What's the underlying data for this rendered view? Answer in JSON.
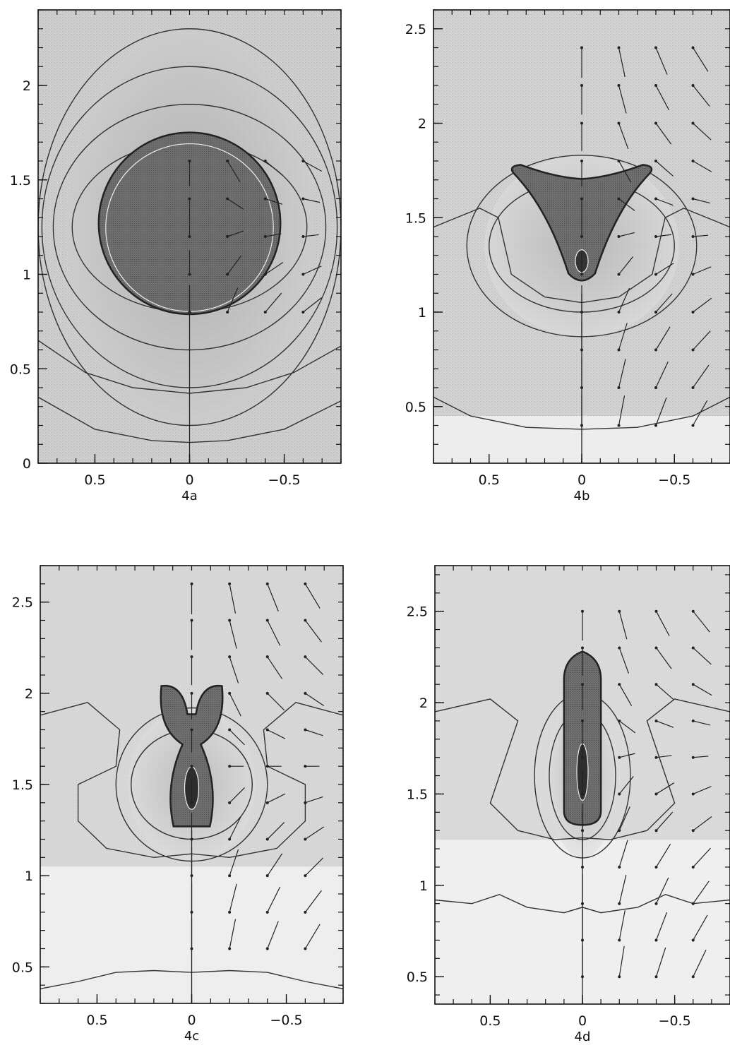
{
  "chart_data": [
    {
      "type": "contour",
      "panel_label": "4a",
      "xlim": [
        0.8,
        -0.8
      ],
      "ylim": [
        0,
        2.4
      ],
      "x_ticks": [
        0.5,
        0,
        -0.5
      ],
      "x_tick_labels": [
        "0.5",
        "0",
        "−0.5"
      ],
      "y_ticks": [
        0,
        0.5,
        1,
        1.5,
        2
      ],
      "y_tick_labels": [
        "0",
        "0.5",
        "1",
        "1.5",
        "2"
      ],
      "body": {
        "shape": "circle",
        "center": [
          0,
          1.27
        ],
        "radius": 0.48
      },
      "contour_lines": [
        {
          "points": [
            [
              0.8,
              0.65
            ],
            [
              0.55,
              0.48
            ],
            [
              0.3,
              0.4
            ],
            [
              0,
              0.37
            ],
            [
              -0.3,
              0.4
            ],
            [
              -0.55,
              0.48
            ],
            [
              -0.8,
              0.62
            ]
          ]
        },
        {
          "points": [
            [
              0.8,
              0.35
            ],
            [
              0.5,
              0.18
            ],
            [
              0.2,
              0.12
            ],
            [
              0,
              0.11
            ],
            [
              -0.2,
              0.12
            ],
            [
              -0.5,
              0.18
            ],
            [
              -0.8,
              0.33
            ]
          ]
        }
      ],
      "rings": [
        {
          "center_y": 1.25,
          "rx": [
            0.62,
            0.72,
            0.78,
            0.8
          ],
          "ry": [
            0.45,
            0.65,
            0.85,
            1.05
          ]
        }
      ],
      "vectors": {
        "grid_x": [
          0,
          -0.2,
          -0.4,
          -0.6
        ],
        "grid_y": [
          0.2,
          0.4,
          0.6,
          0.8,
          1.0,
          1.2,
          1.4,
          1.6
        ],
        "mask_y_min": 0.8
      }
    },
    {
      "type": "contour",
      "panel_label": "4b",
      "xlim": [
        0.8,
        -0.8
      ],
      "ylim": [
        0.2,
        2.6
      ],
      "x_ticks": [
        0.5,
        0,
        -0.5
      ],
      "x_tick_labels": [
        "0.5",
        "0",
        "−0.5"
      ],
      "y_ticks": [
        0.5,
        1,
        1.5,
        2,
        2.5
      ],
      "y_tick_labels": [
        "0.5",
        "1",
        "1.5",
        "2",
        "2.5"
      ],
      "body": {
        "shape": "cup",
        "center": [
          0,
          1.45
        ],
        "width": 0.36
      },
      "contour_lines": [
        {
          "points": [
            [
              0.8,
              0.55
            ],
            [
              0.6,
              0.45
            ],
            [
              0.3,
              0.39
            ],
            [
              0,
              0.38
            ],
            [
              -0.3,
              0.39
            ],
            [
              -0.6,
              0.45
            ],
            [
              -0.8,
              0.55
            ]
          ]
        },
        {
          "points": [
            [
              0.8,
              1.45
            ],
            [
              0.55,
              1.55
            ],
            [
              0.45,
              1.5
            ],
            [
              0.38,
              1.2
            ],
            [
              0.2,
              1.08
            ],
            [
              0,
              1.05
            ],
            [
              -0.2,
              1.08
            ],
            [
              -0.38,
              1.2
            ],
            [
              -0.45,
              1.5
            ],
            [
              -0.55,
              1.55
            ],
            [
              -0.8,
              1.45
            ]
          ]
        }
      ],
      "rings": [
        {
          "center_y": 1.35,
          "rx": [
            0.5,
            0.62
          ],
          "ry": [
            0.35,
            0.48
          ]
        }
      ],
      "vectors": {
        "grid_x": [
          0,
          -0.2,
          -0.4,
          -0.6
        ],
        "grid_y": [
          0.4,
          0.6,
          0.8,
          1.0,
          1.2,
          1.4,
          1.6,
          1.8,
          2.0,
          2.2,
          2.4
        ],
        "mask_y_min": 0.2
      }
    },
    {
      "type": "contour",
      "panel_label": "4c",
      "xlim": [
        0.8,
        -0.8
      ],
      "ylim": [
        0.3,
        2.7
      ],
      "x_ticks": [
        0.5,
        0,
        -0.5
      ],
      "x_tick_labels": [
        "0.5",
        "0",
        "−0.5"
      ],
      "y_ticks": [
        0.5,
        1,
        1.5,
        2,
        2.5
      ],
      "y_tick_labels": [
        "0.5",
        "1",
        "1.5",
        "2",
        "2.5"
      ],
      "body": {
        "shape": "jet",
        "center": [
          0,
          1.6
        ],
        "width": 0.16
      },
      "contour_lines": [
        {
          "points": [
            [
              0.8,
              0.38
            ],
            [
              0.6,
              0.42
            ],
            [
              0.4,
              0.47
            ],
            [
              0.2,
              0.48
            ],
            [
              0,
              0.47
            ],
            [
              -0.2,
              0.48
            ],
            [
              -0.4,
              0.47
            ],
            [
              -0.6,
              0.42
            ],
            [
              -0.8,
              0.38
            ]
          ]
        },
        {
          "points": [
            [
              0.8,
              1.88
            ],
            [
              0.55,
              1.95
            ],
            [
              0.38,
              1.8
            ],
            [
              0.4,
              1.6
            ],
            [
              0.6,
              1.5
            ],
            [
              0.6,
              1.3
            ],
            [
              0.45,
              1.15
            ],
            [
              0.2,
              1.1
            ],
            [
              0,
              1.12
            ],
            [
              -0.2,
              1.1
            ],
            [
              -0.45,
              1.15
            ],
            [
              -0.6,
              1.3
            ],
            [
              -0.6,
              1.5
            ],
            [
              -0.4,
              1.6
            ],
            [
              -0.38,
              1.8
            ],
            [
              -0.55,
              1.95
            ],
            [
              -0.8,
              1.88
            ]
          ]
        }
      ],
      "rings": [
        {
          "center_y": 1.5,
          "rx": [
            0.32,
            0.4
          ],
          "ry": [
            0.3,
            0.42
          ]
        }
      ],
      "vectors": {
        "grid_x": [
          0,
          -0.2,
          -0.4,
          -0.6
        ],
        "grid_y": [
          0.6,
          0.8,
          1.0,
          1.2,
          1.4,
          1.6,
          1.8,
          2.0,
          2.2,
          2.4,
          2.6
        ],
        "mask_y_min": 0.3
      }
    },
    {
      "type": "contour",
      "panel_label": "4d",
      "xlim": [
        0.8,
        -0.8
      ],
      "ylim": [
        0.35,
        2.75
      ],
      "x_ticks": [
        0.5,
        0,
        -0.5
      ],
      "x_tick_labels": [
        "0.5",
        "0",
        "−0.5"
      ],
      "y_ticks": [
        0.5,
        1,
        1.5,
        2,
        2.5
      ],
      "y_tick_labels": [
        "0.5",
        "1",
        "1.5",
        "2",
        "2.5"
      ],
      "body": {
        "shape": "column",
        "center": [
          0,
          1.75
        ],
        "width": 0.1
      },
      "contour_lines": [
        {
          "points": [
            [
              0.8,
              0.92
            ],
            [
              0.6,
              0.9
            ],
            [
              0.45,
              0.95
            ],
            [
              0.3,
              0.88
            ],
            [
              0.1,
              0.85
            ],
            [
              0,
              0.88
            ],
            [
              -0.1,
              0.85
            ],
            [
              -0.3,
              0.88
            ],
            [
              -0.45,
              0.95
            ],
            [
              -0.6,
              0.9
            ],
            [
              -0.8,
              0.92
            ]
          ]
        },
        {
          "points": [
            [
              0.8,
              1.95
            ],
            [
              0.5,
              2.02
            ],
            [
              0.35,
              1.9
            ],
            [
              0.45,
              1.6
            ],
            [
              0.5,
              1.45
            ],
            [
              0.35,
              1.3
            ],
            [
              0.15,
              1.25
            ],
            [
              0,
              1.26
            ],
            [
              -0.15,
              1.25
            ],
            [
              -0.35,
              1.3
            ],
            [
              -0.5,
              1.45
            ],
            [
              -0.45,
              1.6
            ],
            [
              -0.35,
              1.9
            ],
            [
              -0.5,
              2.02
            ],
            [
              -0.8,
              1.95
            ]
          ]
        }
      ],
      "rings": [
        {
          "center_y": 1.6,
          "rx": [
            0.18,
            0.26
          ],
          "ry": [
            0.35,
            0.45
          ]
        }
      ],
      "vectors": {
        "grid_x": [
          0,
          -0.2,
          -0.4,
          -0.6
        ],
        "grid_y": [
          0.5,
          0.7,
          0.9,
          1.1,
          1.3,
          1.5,
          1.7,
          1.9,
          2.1,
          2.3,
          2.5
        ],
        "mask_y_min": 0.35
      }
    }
  ]
}
